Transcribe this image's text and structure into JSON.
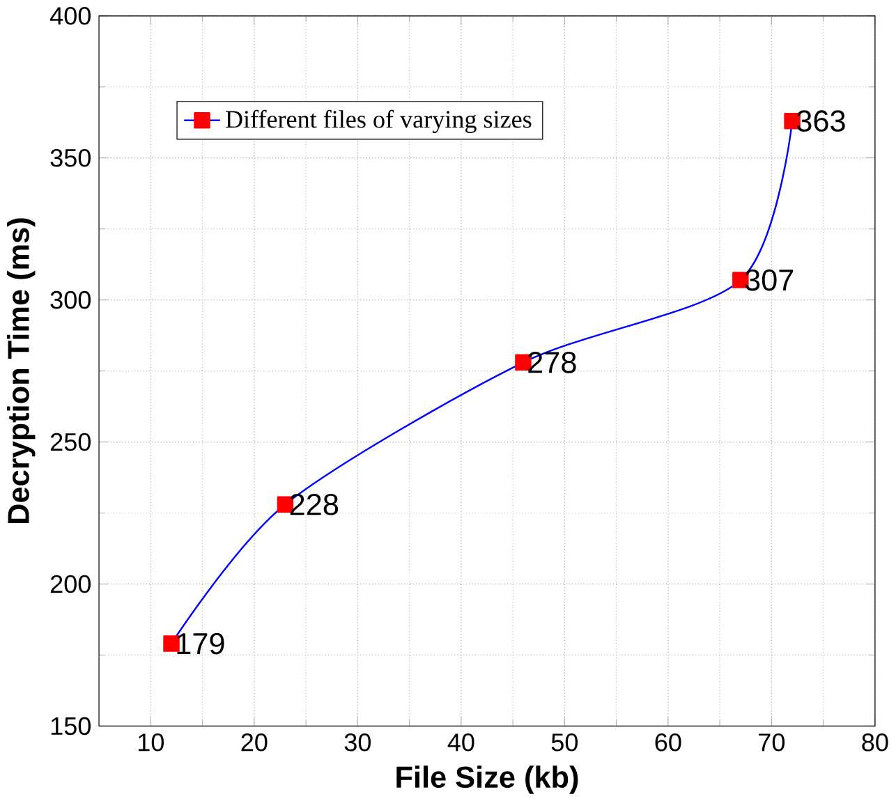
{
  "chart_data": {
    "type": "line",
    "xlabel": "File Size (kb)",
    "ylabel": "Decryption Time (ms)",
    "x": [
      12,
      23,
      46,
      67,
      72
    ],
    "series": [
      {
        "name": "Different files of varying sizes",
        "color": "#0000ff",
        "colors": [
          "#ff0000",
          "#ff0000",
          "#ff0000",
          "#ff0000",
          "#ff0000"
        ],
        "values": [
          179,
          228,
          278,
          307,
          363
        ]
      }
    ],
    "xlim": [
      5,
      80
    ],
    "ylim": [
      150,
      400
    ],
    "xticks": [
      10,
      20,
      30,
      40,
      50,
      60,
      70,
      80
    ],
    "yticks": [
      150,
      200,
      250,
      300,
      350,
      400
    ],
    "grid": true,
    "legend": "top left",
    "marker": "square",
    "line_style": "solid",
    "data_labels": true
  }
}
